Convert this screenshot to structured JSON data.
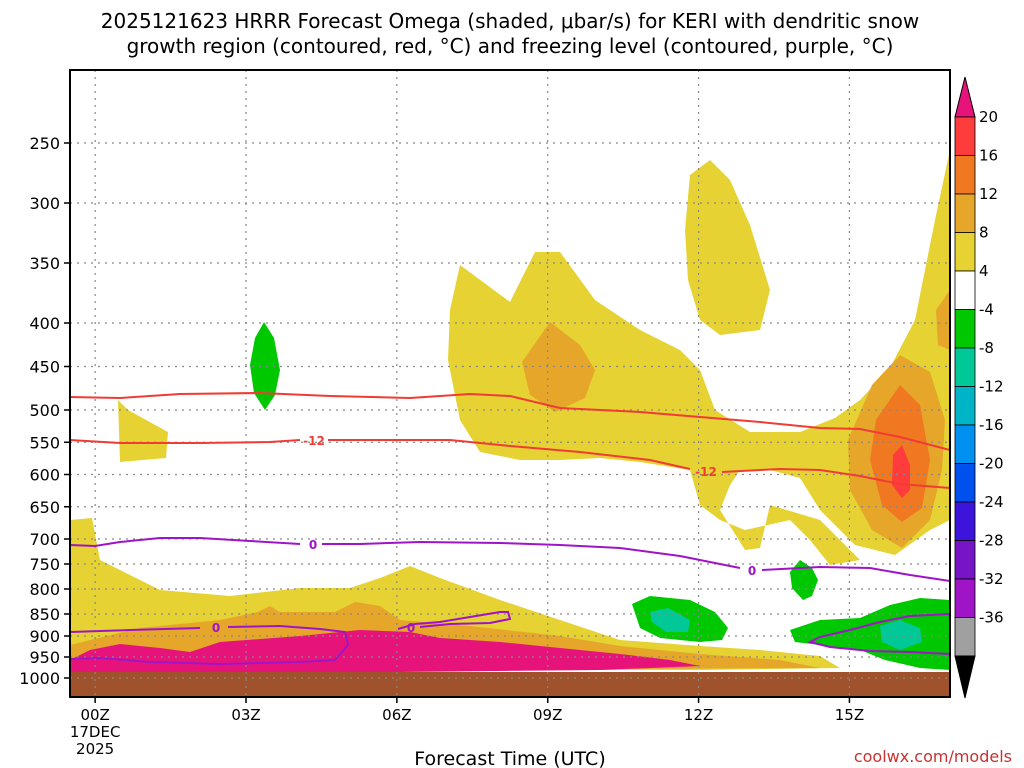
{
  "header": {
    "title_line1": "2025121623 HRRR Forecast Omega (shaded, μbar/s) for KERI with dendritic snow",
    "title_line2": "growth region (contoured, red, °C) and freezing level (contoured, purple, °C)"
  },
  "footer": {
    "credit": "coolwx.com/models"
  },
  "chart_data": {
    "type": "time-height cross section (filled contour)",
    "title": "2025121623 HRRR Forecast Omega (shaded, μbar/s) for KERI with dendritic snow growth region (contoured, red, °C) and freezing level (contoured, purple, °C)",
    "xlabel": "Forecast Time (UTC)",
    "ylabel": "",
    "x_range_hours": [
      -0.5,
      17.0
    ],
    "x_ticks": [
      {
        "hour": 0,
        "label": "00Z",
        "sub1": "17DEC",
        "sub2": "2025"
      },
      {
        "hour": 3,
        "label": "03Z",
        "sub1": "",
        "sub2": ""
      },
      {
        "hour": 6,
        "label": "06Z",
        "sub1": "",
        "sub2": ""
      },
      {
        "hour": 9,
        "label": "09Z",
        "sub1": "",
        "sub2": ""
      },
      {
        "hour": 12,
        "label": "12Z",
        "sub1": "",
        "sub2": ""
      },
      {
        "hour": 15,
        "label": "15Z",
        "sub1": "",
        "sub2": ""
      }
    ],
    "y_axis_pressure_hpa": [
      250,
      300,
      350,
      400,
      450,
      500,
      550,
      600,
      650,
      700,
      750,
      800,
      850,
      900,
      950,
      1000
    ],
    "ground_pressure_hpa": 985,
    "colorbar": {
      "unit": "μbar/s",
      "levels": [
        "20",
        "16",
        "12",
        "8",
        "4",
        "-4",
        "-8",
        "-12",
        "-16",
        "-20",
        "-24",
        "-28",
        "-32",
        "-36"
      ],
      "colors": [
        "#ff3c3c",
        "#f07820",
        "#e6a62a",
        "#e6d232",
        "#ffffff",
        "#00c800",
        "#00c896",
        "#00b4c8",
        "#0090f0",
        "#0050f0",
        "#3c14dc",
        "#7814c8",
        "#a014c8",
        "#a0a0a0"
      ],
      "top_triangle_color": "#e6147a",
      "bottom_triangle_color": "#000000"
    },
    "shaded_regions": [
      {
        "level": "4 to 8",
        "color": "#e6d232",
        "description": "weak rising motion, broad area 09Z-11Z 340-600 hPa, 12Z-13Z 270-480 hPa, 14Z-17Z 260-700 hPa, and 02Z-09Z below 750 hPa"
      },
      {
        "level": "8 to 12",
        "color": "#e6a62a",
        "description": "09Z 420-480 hPa and 15Z-17Z 450-700 hPa"
      },
      {
        "level": "12 to 16",
        "color": "#f07820",
        "description": "16Z 480-650 hPa"
      },
      {
        "level": "16 to 20",
        "color": "#ff3c3c",
        "description": "16Z 540-600 hPa"
      },
      {
        "level": "above 20",
        "color": "#e6147a",
        "description": "near-surface 00Z-10Z 920-985 hPa"
      },
      {
        "level": "-4 to -8",
        "color": "#00c800",
        "description": "03Z 400-500 hPa, 11Z 850-900 hPa, 14Z 780-800 hPa, 15Z-17Z 850-950 hPa"
      },
      {
        "level": "-8 to -12",
        "color": "#00c896",
        "description": "11Z 870-900 hPa, 16Z 900-930 hPa"
      }
    ],
    "contours": [
      {
        "name": "dendritic growth upper bound",
        "color": "#f03c32",
        "value": "-18 °C",
        "label": "",
        "pressure_start_hpa": 483,
        "pressure_end_hpa": 555
      },
      {
        "name": "dendritic growth lower bound",
        "color": "#f03c32",
        "value": "-12 °C",
        "label": "-12",
        "pressure_start_hpa": 542,
        "pressure_end_hpa": 612
      },
      {
        "name": "freezing level",
        "color": "#a014c8",
        "value": "0 °C",
        "label": "0",
        "pressure_start_hpa": 710,
        "pressure_end_hpa": 780
      }
    ]
  }
}
